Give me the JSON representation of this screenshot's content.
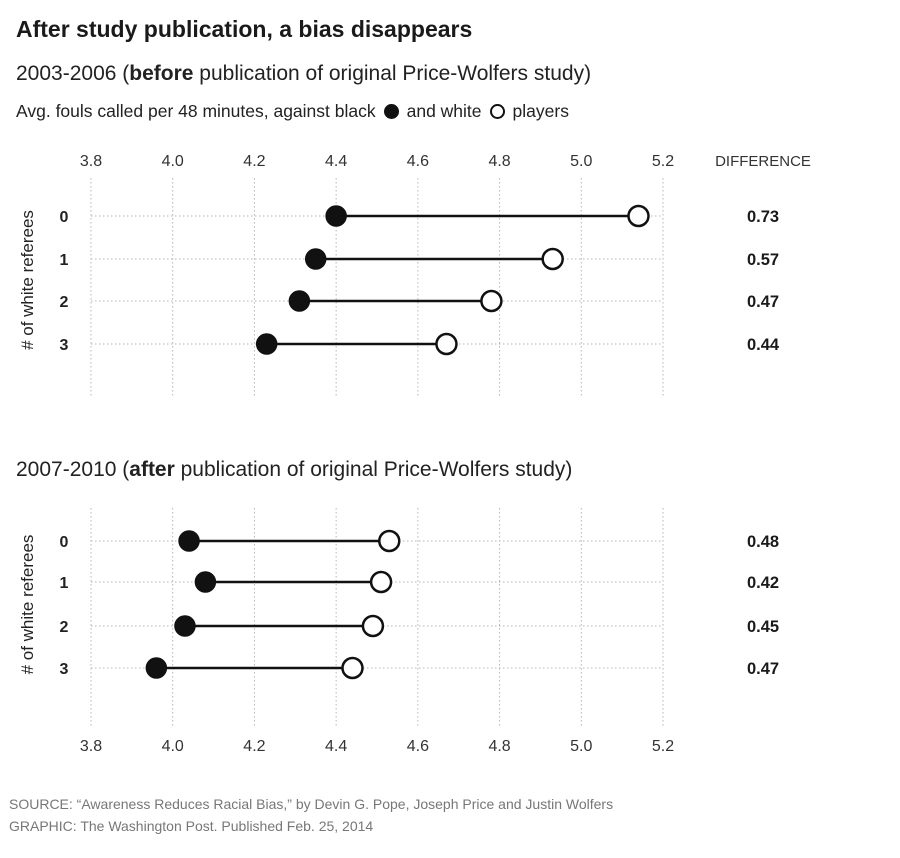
{
  "title": "After study publication, a bias disappears",
  "legend": {
    "prefix": "Avg. fouls called per 48 minutes, against black",
    "middle": "and white",
    "suffix": "players"
  },
  "difference_header": "DIFFERENCE",
  "colors": {
    "line": "#111111",
    "black_dot": "#111111",
    "white_dot_fill": "#ffffff",
    "grid": "#b5b5b5"
  },
  "source": {
    "line1": "SOURCE: “Awareness Reduces Racial Bias,” by Devin G. Pope, Joseph Price and Justin Wolfers",
    "line2": "GRAPHIC: The Washington Post. Published Feb. 25, 2014"
  },
  "chart_data": [
    {
      "type": "dumbbell",
      "subtitle": {
        "period": "2003-2006 (",
        "emphasis": "before",
        "rest": " publication of original Price-Wolfers study)"
      },
      "ylabel": "# of white referees",
      "xlim": [
        3.8,
        5.2
      ],
      "xticks": [
        "3.8",
        "4.0",
        "4.2",
        "4.4",
        "4.6",
        "4.8",
        "5.0",
        "5.2"
      ],
      "xticks_position": "top",
      "categories": [
        "0",
        "1",
        "2",
        "3"
      ],
      "series": [
        {
          "name": "black players",
          "values": [
            4.4,
            4.35,
            4.31,
            4.23
          ]
        },
        {
          "name": "white players",
          "values": [
            5.14,
            4.93,
            4.78,
            4.67
          ]
        }
      ],
      "difference": [
        "0.73",
        "0.57",
        "0.47",
        "0.44"
      ],
      "grid": true
    },
    {
      "type": "dumbbell",
      "subtitle": {
        "period": "2007-2010 (",
        "emphasis": "after",
        "rest": " publication of original Price-Wolfers study)"
      },
      "ylabel": "# of white referees",
      "xlim": [
        3.8,
        5.2
      ],
      "xticks": [
        "3.8",
        "4.0",
        "4.2",
        "4.4",
        "4.6",
        "4.8",
        "5.0",
        "5.2"
      ],
      "xticks_position": "bottom",
      "categories": [
        "0",
        "1",
        "2",
        "3"
      ],
      "series": [
        {
          "name": "black players",
          "values": [
            4.04,
            4.08,
            4.03,
            3.96
          ]
        },
        {
          "name": "white players",
          "values": [
            4.53,
            4.51,
            4.49,
            4.44
          ]
        }
      ],
      "difference": [
        "0.48",
        "0.42",
        "0.45",
        "0.47"
      ],
      "grid": true
    }
  ]
}
